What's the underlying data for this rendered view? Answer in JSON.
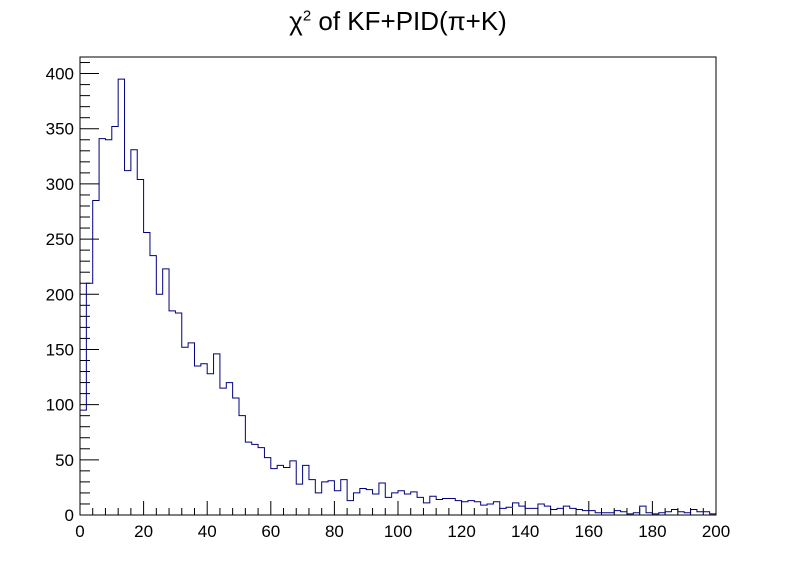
{
  "chart_data": {
    "type": "histogram",
    "title": {
      "prefix": "χ",
      "sup": "2",
      "suffix": " of KF+PID(π+K)"
    },
    "xlim": [
      0,
      200
    ],
    "ylim": [
      0,
      415
    ],
    "bin_width": 2,
    "x_ticks": [
      0,
      20,
      40,
      60,
      80,
      100,
      120,
      140,
      160,
      180,
      200
    ],
    "y_ticks": [
      0,
      50,
      100,
      150,
      200,
      250,
      300,
      350,
      400
    ],
    "line_color": "#00007f",
    "values": [
      95,
      210,
      285,
      341,
      340,
      352,
      395,
      312,
      331,
      304,
      256,
      235,
      200,
      223,
      185,
      183,
      152,
      156,
      135,
      137,
      128,
      146,
      115,
      120,
      106,
      90,
      66,
      64,
      61,
      52,
      42,
      45,
      43,
      49,
      28,
      45,
      32,
      20,
      30,
      31,
      22,
      32,
      13,
      20,
      24,
      23,
      19,
      29,
      16,
      20,
      22,
      19,
      21,
      16,
      11,
      17,
      14,
      15,
      15,
      13,
      12,
      13,
      12,
      9,
      10,
      12,
      6,
      7,
      11,
      8,
      6,
      6,
      10,
      8,
      5,
      6,
      8,
      6,
      5,
      4,
      4,
      2,
      2,
      2,
      4,
      3,
      1,
      2,
      8,
      2,
      1,
      2,
      3,
      5,
      3,
      2,
      5,
      3,
      3,
      1
    ]
  }
}
